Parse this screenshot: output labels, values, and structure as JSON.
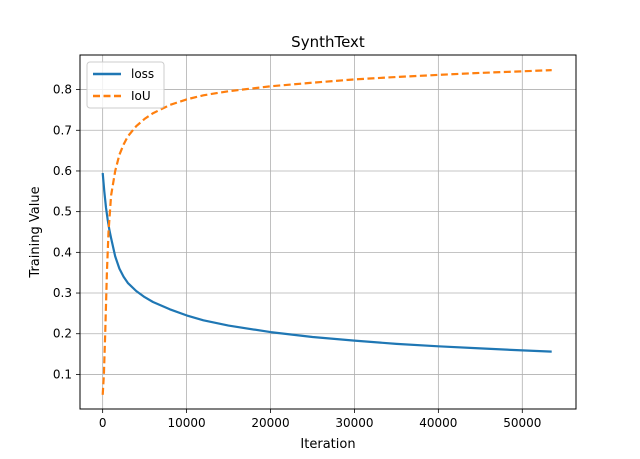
{
  "chart_data": {
    "type": "line",
    "title": "SynthText",
    "xlabel": "Iteration",
    "ylabel": "Training Value",
    "xlim": [
      -2700,
      56400
    ],
    "ylim": [
      0.015,
      0.885
    ],
    "xticks": [
      0,
      10000,
      20000,
      30000,
      40000,
      50000
    ],
    "xtick_labels": [
      "0",
      "10000",
      "20000",
      "30000",
      "40000",
      "50000"
    ],
    "yticks": [
      0.1,
      0.2,
      0.3,
      0.4,
      0.5,
      0.6,
      0.7,
      0.8
    ],
    "ytick_labels": [
      "0.1",
      "0.2",
      "0.3",
      "0.4",
      "0.5",
      "0.6",
      "0.7",
      "0.8"
    ],
    "grid": true,
    "legend_position": "upper-left",
    "series": [
      {
        "name": "loss",
        "color": "#1f77b4",
        "dash": "solid",
        "x": [
          0,
          200,
          400,
          600,
          800,
          1000,
          1500,
          2000,
          2500,
          3000,
          4000,
          5000,
          6000,
          8000,
          10000,
          12000,
          15000,
          20000,
          25000,
          30000,
          35000,
          40000,
          45000,
          50000,
          53500
        ],
        "y": [
          0.595,
          0.55,
          0.51,
          0.48,
          0.455,
          0.435,
          0.39,
          0.36,
          0.34,
          0.325,
          0.305,
          0.29,
          0.278,
          0.26,
          0.245,
          0.233,
          0.22,
          0.204,
          0.192,
          0.183,
          0.175,
          0.169,
          0.164,
          0.159,
          0.156
        ]
      },
      {
        "name": "IoU",
        "color": "#ff7f0e",
        "dash": "dashed",
        "x": [
          0,
          150,
          300,
          500,
          700,
          1000,
          1500,
          2000,
          2500,
          3000,
          4000,
          5000,
          6000,
          8000,
          10000,
          12000,
          15000,
          20000,
          25000,
          30000,
          35000,
          40000,
          45000,
          50000,
          53500
        ],
        "y": [
          0.05,
          0.1,
          0.2,
          0.35,
          0.45,
          0.54,
          0.6,
          0.64,
          0.665,
          0.685,
          0.71,
          0.728,
          0.742,
          0.762,
          0.776,
          0.786,
          0.796,
          0.808,
          0.817,
          0.825,
          0.831,
          0.836,
          0.841,
          0.845,
          0.848
        ]
      }
    ]
  }
}
